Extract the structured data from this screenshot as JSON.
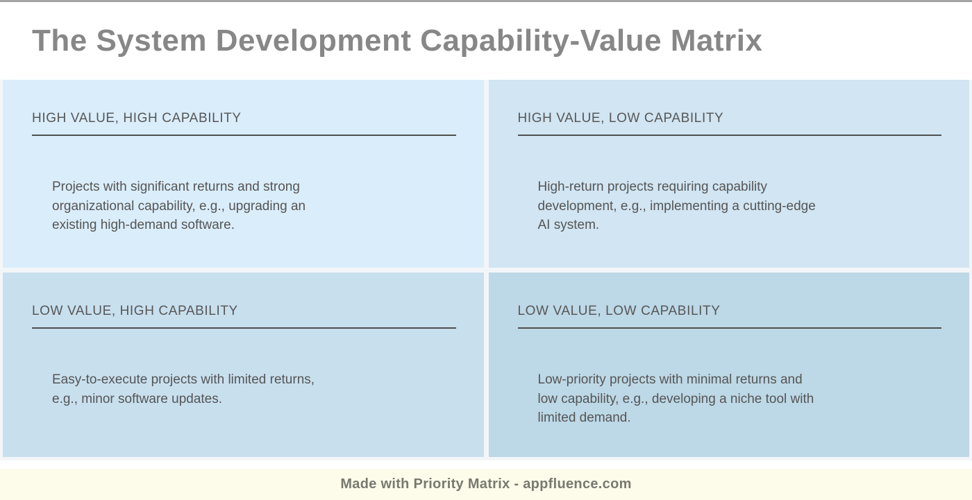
{
  "title": "The System Development Capability-Value Matrix",
  "quadrants": [
    {
      "header": "HIGH VALUE, HIGH CAPABILITY",
      "body": "Projects with significant returns and strong\norganizational capability, e.g., upgrading an\nexisting high-demand software.",
      "bg": "#daedfa"
    },
    {
      "header": "HIGH VALUE, LOW CAPABILITY",
      "body": "High-return projects requiring capability\ndevelopment, e.g., implementing a cutting-edge\nAI system.",
      "bg": "#d1e5f2"
    },
    {
      "header": "LOW VALUE, HIGH CAPABILITY",
      "body": "Easy-to-execute projects with limited returns,\ne.g., minor software updates.",
      "bg": "#c8dfee"
    },
    {
      "header": "LOW VALUE, LOW CAPABILITY",
      "body": "Low-priority projects with minimal returns and\nlow capability, e.g., developing a niche tool with\nlimited demand.",
      "bg": "#bdd8e6"
    }
  ],
  "footer": {
    "text": "Made with Priority Matrix - appfluence.com",
    "background": "#fdfceb"
  },
  "colors": {
    "title_text": "#878787",
    "header_text": "#575757",
    "body_text": "#555555",
    "rule": "#4f4f4f",
    "top_border": "#a3a3a3",
    "footer_text": "#79796f"
  }
}
